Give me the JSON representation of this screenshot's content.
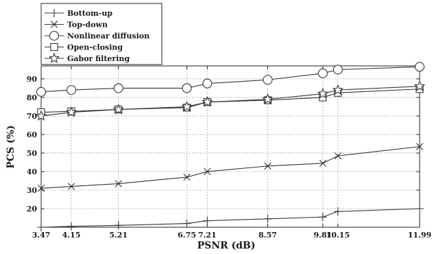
{
  "chart_data": {
    "type": "line",
    "title": "",
    "xlabel": "PSNR (dB)",
    "ylabel": "PCS (%)",
    "x": [
      3.47,
      4.15,
      5.21,
      6.75,
      7.21,
      8.57,
      9.81,
      10.15,
      11.99
    ],
    "x_tick_labels": [
      "3.47",
      "4.15",
      "5.21",
      "6.75",
      "7.21",
      "8.57",
      "9.81",
      "10.15",
      "11.99"
    ],
    "xlim": [
      3.47,
      11.99
    ],
    "ylim": [
      10,
      97
    ],
    "y_ticks": [
      20,
      30,
      40,
      50,
      60,
      70,
      80,
      90
    ],
    "grid": true,
    "grid_style": "dotted",
    "legend_position": "top-left",
    "series": [
      {
        "name": "Bottom-up",
        "marker": "plus",
        "values": [
          10,
          10.5,
          11,
          12,
          13.5,
          14.5,
          15.5,
          18.5,
          20
        ]
      },
      {
        "name": "Top-down",
        "marker": "x",
        "values": [
          31,
          32,
          33.5,
          37,
          40,
          43,
          44.5,
          48.5,
          53.5
        ]
      },
      {
        "name": "Nonlinear diffusion",
        "marker": "circle",
        "values": [
          83,
          84,
          85,
          85,
          87.5,
          89.5,
          93,
          95,
          96.5
        ]
      },
      {
        "name": "Open-closing",
        "marker": "square",
        "values": [
          72,
          72.5,
          73.5,
          74.5,
          77.5,
          78.5,
          80,
          82.5,
          84.5
        ]
      },
      {
        "name": "Gabor filtering",
        "marker": "star",
        "values": [
          70,
          72,
          73.5,
          75,
          77.5,
          79,
          82,
          84,
          86
        ]
      }
    ]
  }
}
